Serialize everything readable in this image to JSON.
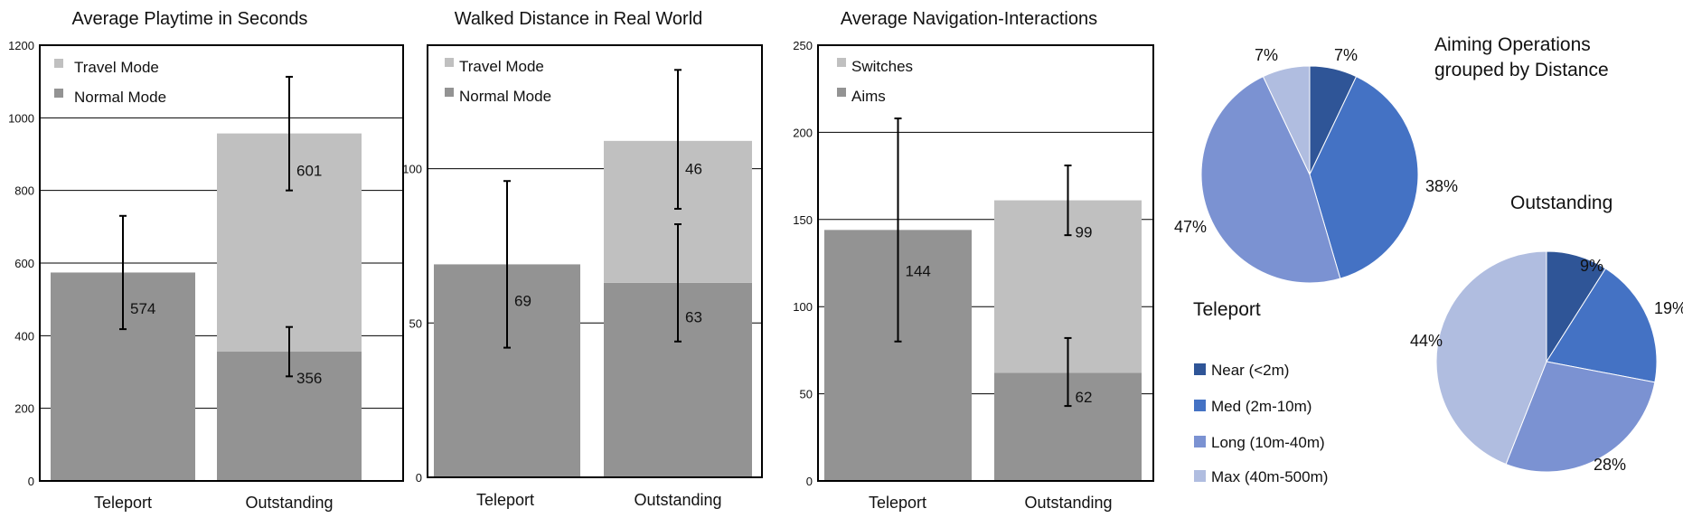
{
  "chart_data": [
    {
      "type": "bar",
      "stacked": true,
      "title": "Average Playtime in Seconds",
      "categories": [
        "Teleport",
        "Outstanding"
      ],
      "ylim": [
        0,
        1200
      ],
      "yticks": [
        0,
        200,
        400,
        600,
        800,
        1000,
        1200
      ],
      "ytick_labels": [
        "0",
        "200",
        "400",
        "600",
        "800",
        "1000",
        "1200"
      ],
      "grid": true,
      "legend_position": "top-left",
      "series": [
        {
          "name": "Normal Mode",
          "color": "#939393",
          "values": [
            574,
            356
          ],
          "labels": [
            "574",
            "356"
          ],
          "err_low": [
            418,
            288
          ],
          "err_high": [
            730,
            424
          ]
        },
        {
          "name": "Travel Mode",
          "color": "#c0c0c0",
          "values": [
            null,
            601
          ],
          "labels": [
            "",
            "601"
          ],
          "err_low": [
            null,
            800
          ],
          "err_high": [
            null,
            1113
          ]
        }
      ],
      "legend": [
        "Travel Mode",
        "Normal Mode"
      ]
    },
    {
      "type": "bar",
      "stacked": true,
      "title": "Walked Distance in Real World",
      "categories": [
        "Teleport",
        "Outstanding"
      ],
      "ylim": [
        0,
        140
      ],
      "yticks": [
        0,
        50,
        100
      ],
      "ytick_labels": [
        "0",
        "50",
        "100"
      ],
      "grid": true,
      "legend_position": "top-left",
      "series": [
        {
          "name": "Normal Mode",
          "color": "#939393",
          "values": [
            69,
            63
          ],
          "labels": [
            "69",
            "63"
          ],
          "err_low": [
            42,
            44
          ],
          "err_high": [
            96,
            82
          ]
        },
        {
          "name": "Travel Mode",
          "color": "#c0c0c0",
          "values": [
            null,
            46
          ],
          "labels": [
            "",
            "46"
          ],
          "err_low": [
            null,
            87
          ],
          "err_high": [
            null,
            132
          ]
        }
      ],
      "legend": [
        "Travel Mode",
        "Normal Mode"
      ]
    },
    {
      "type": "bar",
      "stacked": true,
      "title": "Average Navigation-Interactions",
      "categories": [
        "Teleport",
        "Outstanding"
      ],
      "ylim": [
        0,
        250
      ],
      "yticks": [
        0,
        50,
        100,
        150,
        200,
        250
      ],
      "ytick_labels": [
        "0",
        "50",
        "100",
        "150",
        "200",
        "250"
      ],
      "grid": true,
      "legend_position": "top-left",
      "series": [
        {
          "name": "Aims",
          "color": "#939393",
          "values": [
            144,
            62
          ],
          "labels": [
            "144",
            "62"
          ],
          "err_low": [
            80,
            43
          ],
          "err_high": [
            208,
            82
          ]
        },
        {
          "name": "Switches",
          "color": "#c0c0c0",
          "values": [
            null,
            99
          ],
          "labels": [
            "",
            "99"
          ],
          "err_low": [
            null,
            141
          ],
          "err_high": [
            null,
            181
          ]
        }
      ],
      "legend": [
        "Switches",
        "Aims"
      ]
    },
    {
      "type": "pie",
      "title": "Aiming Operations grouped by Distance",
      "title_lines": [
        "Aiming Operations",
        "grouped by Distance"
      ],
      "pies": [
        {
          "name": "Teleport",
          "values": [
            7,
            38,
            47,
            7
          ],
          "labels": [
            "7%",
            "38%",
            "47%",
            "7%"
          ]
        },
        {
          "name": "Outstanding",
          "values": [
            9,
            19,
            28,
            44
          ],
          "labels": [
            "9%",
            "19%",
            "28%",
            "44%"
          ]
        }
      ],
      "categories": [
        "Near (<2m)",
        "Med (2m-10m)",
        "Long (10m-40m)",
        "Max (40m-500m)"
      ],
      "colors": [
        "#2f5597",
        "#4472c4",
        "#7b92d2",
        "#b0bde0"
      ],
      "legend_position": "bottom-left"
    }
  ]
}
